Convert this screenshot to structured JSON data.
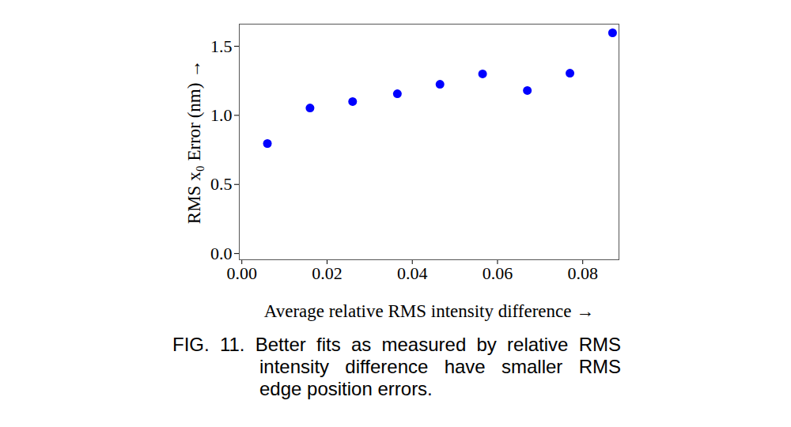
{
  "chart_data": {
    "type": "scatter",
    "x_label": "Average relative RMS intensity difference",
    "y_label": "RMS x₀ Error (nm)",
    "caption": "FIG. 11. Better fits as measured by relative RMS intensity difference have smaller RMS edge position errors.",
    "x": [
      0.006,
      0.016,
      0.026,
      0.0365,
      0.0465,
      0.0565,
      0.067,
      0.077,
      0.087
    ],
    "values": [
      0.796,
      1.053,
      1.1,
      1.156,
      1.225,
      1.3,
      1.18,
      1.305,
      1.597
    ],
    "color": "#0000ff",
    "marker": "circle",
    "xlim": [
      -0.0006,
      0.0885
    ],
    "ylim": [
      -0.045,
      1.66
    ],
    "xticks": [
      {
        "value": 0,
        "label": "0.00"
      },
      {
        "value": 0.02,
        "label": "0.02"
      },
      {
        "value": 0.04,
        "label": "0.04"
      },
      {
        "value": 0.06,
        "label": "0.06"
      },
      {
        "value": 0.08,
        "label": "0.08"
      }
    ],
    "yticks": [
      {
        "value": 0,
        "label": "0.0"
      },
      {
        "value": 0.5,
        "label": "0.5"
      },
      {
        "value": 1,
        "label": "1.0"
      },
      {
        "value": 1.5,
        "label": "1.5"
      }
    ],
    "grid": false
  }
}
